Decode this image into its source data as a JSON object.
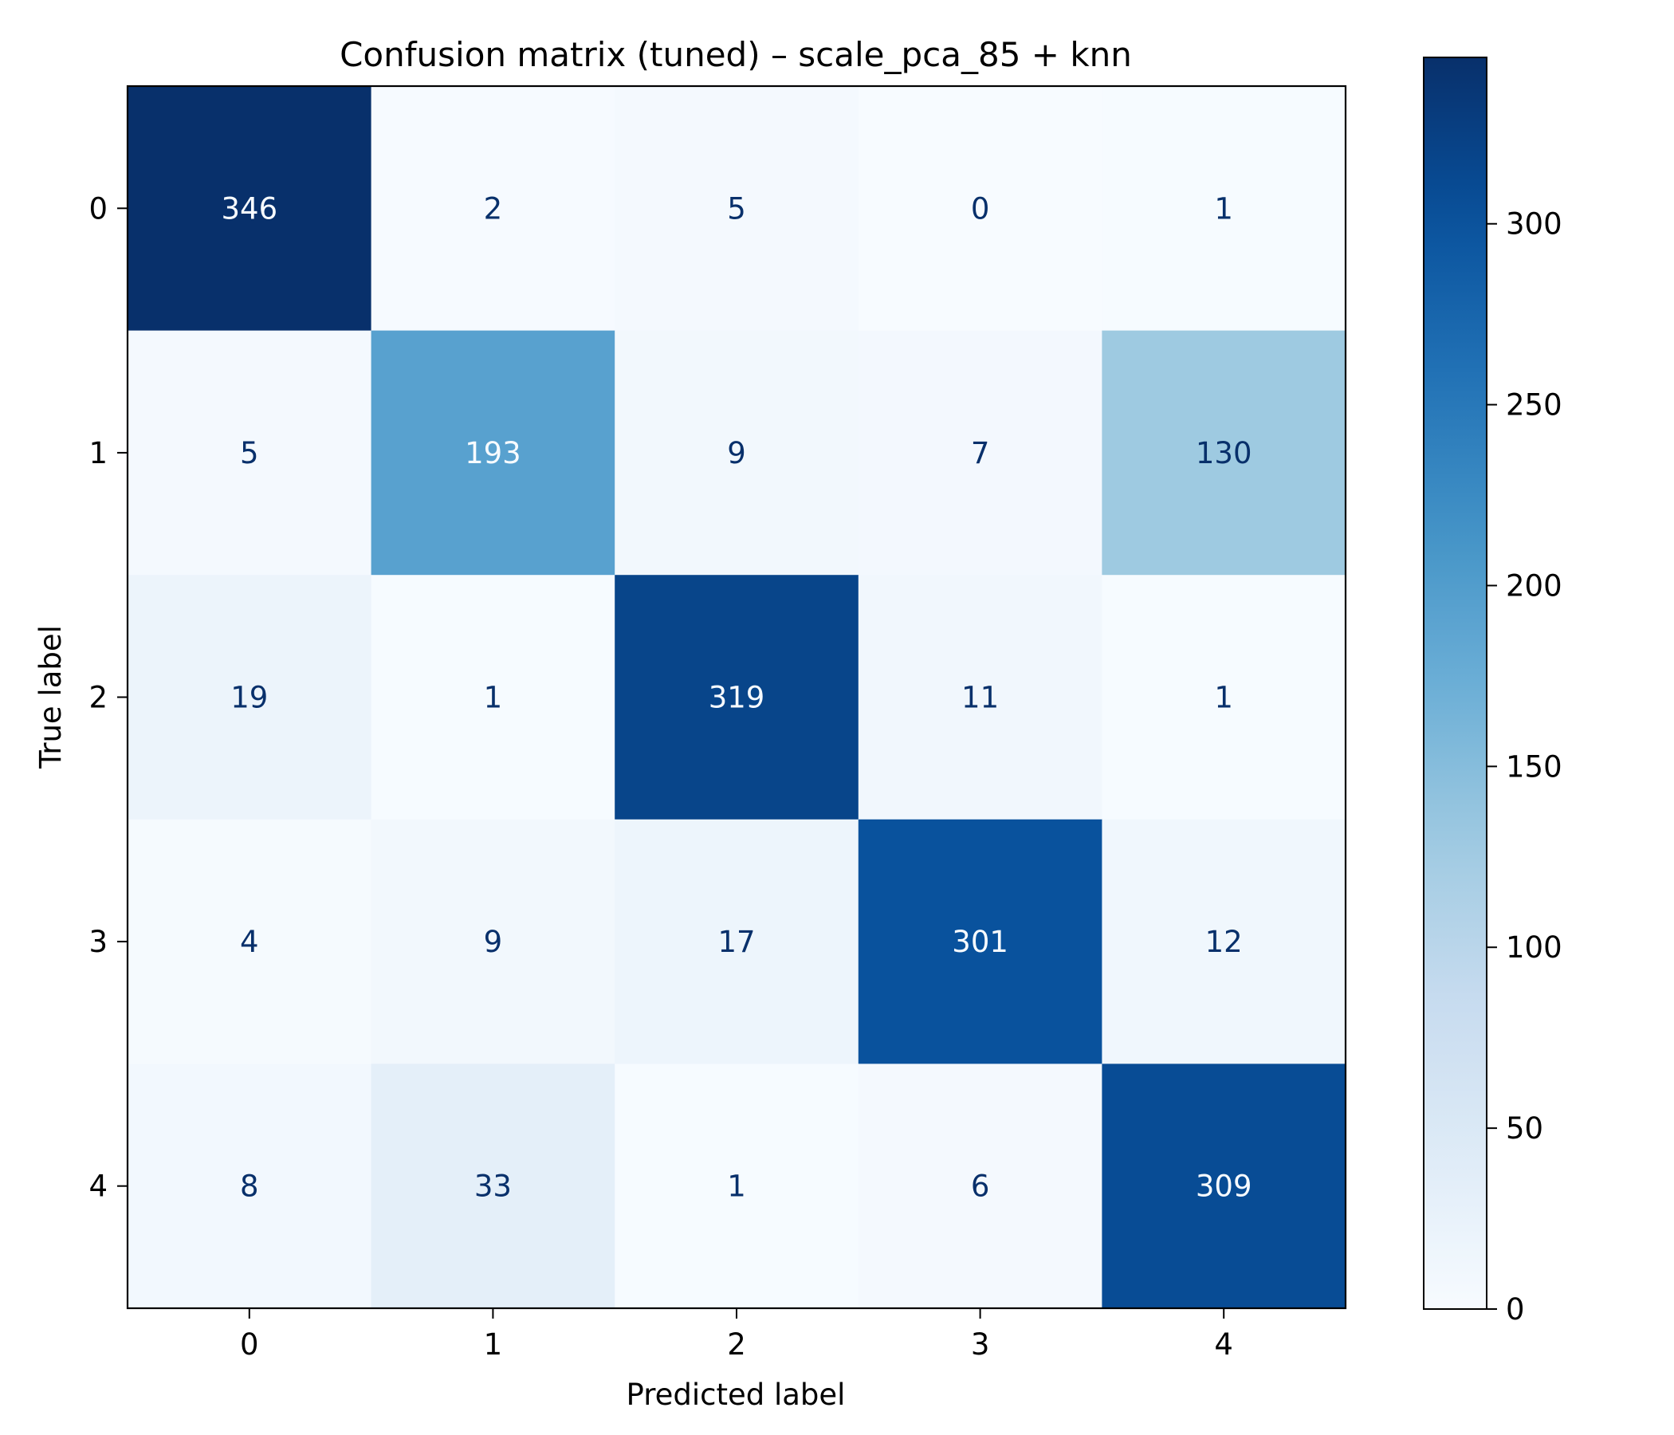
{
  "chart_data": {
    "type": "heatmap",
    "title": "Confusion matrix (tuned) – scale_pca_85 + knn",
    "xlabel": "Predicted label",
    "ylabel": "True label",
    "x_categories": [
      "0",
      "1",
      "2",
      "3",
      "4"
    ],
    "y_categories": [
      "0",
      "1",
      "2",
      "3",
      "4"
    ],
    "matrix": [
      [
        346,
        2,
        5,
        0,
        1
      ],
      [
        5,
        193,
        9,
        7,
        130
      ],
      [
        19,
        1,
        319,
        11,
        1
      ],
      [
        4,
        9,
        17,
        301,
        12
      ],
      [
        8,
        33,
        1,
        6,
        309
      ]
    ],
    "colormap": "Blues",
    "colorbar": {
      "min": 0,
      "max": 346,
      "ticks": [
        0,
        50,
        100,
        150,
        200,
        250,
        300
      ],
      "tick_labels": [
        "0",
        "50",
        "100",
        "150",
        "200",
        "250",
        "300"
      ]
    },
    "text_colors": {
      "light": "#f7fbff",
      "dark": "#08306b"
    }
  }
}
